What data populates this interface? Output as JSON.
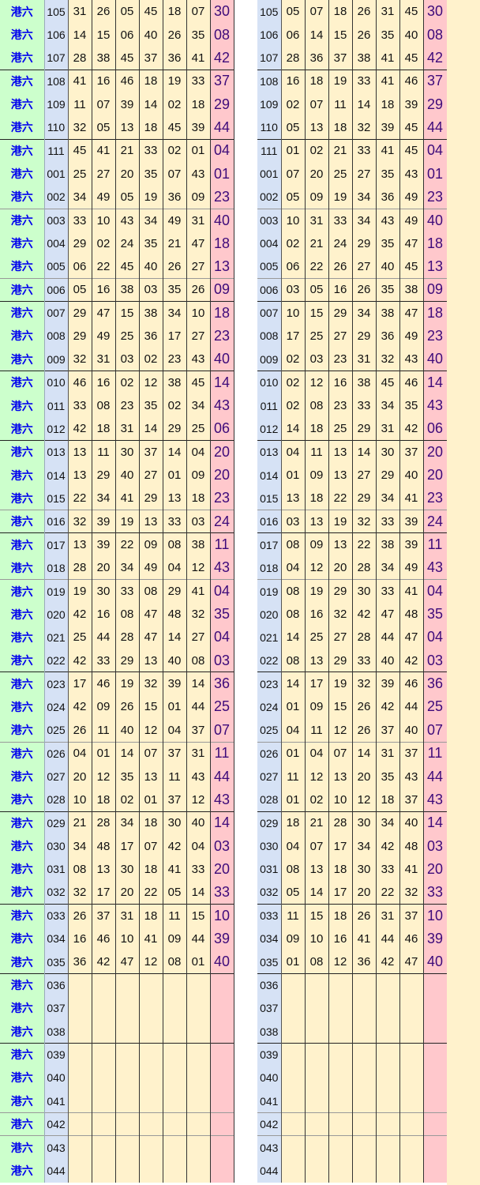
{
  "label": "港六",
  "colors": {
    "label_bg": "#ccffcc",
    "label_text": "#0000ee",
    "issue_bg": "#d6e2f5",
    "number_bg": "#fff2cc",
    "special_bg": "#ffc8cc",
    "special_text": "#3d0a7a"
  },
  "rows": [
    {
      "issue": "105",
      "nums": [
        "31",
        "26",
        "05",
        "45",
        "18",
        "07"
      ],
      "special": "30",
      "sorted": [
        "05",
        "07",
        "18",
        "26",
        "31",
        "45"
      ]
    },
    {
      "issue": "106",
      "nums": [
        "14",
        "15",
        "06",
        "40",
        "26",
        "35"
      ],
      "special": "08",
      "sorted": [
        "06",
        "14",
        "15",
        "26",
        "35",
        "40"
      ]
    },
    {
      "issue": "107",
      "nums": [
        "28",
        "38",
        "45",
        "37",
        "36",
        "41"
      ],
      "special": "42",
      "sorted": [
        "28",
        "36",
        "37",
        "38",
        "41",
        "45"
      ]
    },
    {
      "issue": "108",
      "nums": [
        "41",
        "16",
        "46",
        "18",
        "19",
        "33"
      ],
      "special": "37",
      "sorted": [
        "16",
        "18",
        "19",
        "33",
        "41",
        "46"
      ]
    },
    {
      "issue": "109",
      "nums": [
        "11",
        "07",
        "39",
        "14",
        "02",
        "18"
      ],
      "special": "29",
      "sorted": [
        "02",
        "07",
        "11",
        "14",
        "18",
        "39"
      ]
    },
    {
      "issue": "110",
      "nums": [
        "32",
        "05",
        "13",
        "18",
        "45",
        "39"
      ],
      "special": "44",
      "sorted": [
        "05",
        "13",
        "18",
        "32",
        "39",
        "45"
      ]
    },
    {
      "issue": "111",
      "nums": [
        "45",
        "41",
        "21",
        "33",
        "02",
        "01"
      ],
      "special": "04",
      "sorted": [
        "01",
        "02",
        "21",
        "33",
        "41",
        "45"
      ]
    },
    {
      "issue": "001",
      "nums": [
        "25",
        "27",
        "20",
        "35",
        "07",
        "43"
      ],
      "special": "01",
      "sorted": [
        "07",
        "20",
        "25",
        "27",
        "35",
        "43"
      ]
    },
    {
      "issue": "002",
      "nums": [
        "34",
        "49",
        "05",
        "19",
        "36",
        "09"
      ],
      "special": "23",
      "sorted": [
        "05",
        "09",
        "19",
        "34",
        "36",
        "49"
      ]
    },
    {
      "issue": "003",
      "nums": [
        "33",
        "10",
        "43",
        "34",
        "49",
        "31"
      ],
      "special": "40",
      "sorted": [
        "10",
        "31",
        "33",
        "34",
        "43",
        "49"
      ]
    },
    {
      "issue": "004",
      "nums": [
        "29",
        "02",
        "24",
        "35",
        "21",
        "47"
      ],
      "special": "18",
      "sorted": [
        "02",
        "21",
        "24",
        "29",
        "35",
        "47"
      ]
    },
    {
      "issue": "005",
      "nums": [
        "06",
        "22",
        "45",
        "40",
        "26",
        "27"
      ],
      "special": "13",
      "sorted": [
        "06",
        "22",
        "26",
        "27",
        "40",
        "45"
      ]
    },
    {
      "issue": "006",
      "nums": [
        "05",
        "16",
        "38",
        "03",
        "35",
        "26"
      ],
      "special": "09",
      "sorted": [
        "03",
        "05",
        "16",
        "26",
        "35",
        "38"
      ]
    },
    {
      "issue": "007",
      "nums": [
        "29",
        "47",
        "15",
        "38",
        "34",
        "10"
      ],
      "special": "18",
      "sorted": [
        "10",
        "15",
        "29",
        "34",
        "38",
        "47"
      ]
    },
    {
      "issue": "008",
      "nums": [
        "29",
        "49",
        "25",
        "36",
        "17",
        "27"
      ],
      "special": "23",
      "sorted": [
        "17",
        "25",
        "27",
        "29",
        "36",
        "49"
      ]
    },
    {
      "issue": "009",
      "nums": [
        "32",
        "31",
        "03",
        "02",
        "23",
        "43"
      ],
      "special": "40",
      "sorted": [
        "02",
        "03",
        "23",
        "31",
        "32",
        "43"
      ]
    },
    {
      "issue": "010",
      "nums": [
        "46",
        "16",
        "02",
        "12",
        "38",
        "45"
      ],
      "special": "14",
      "sorted": [
        "02",
        "12",
        "16",
        "38",
        "45",
        "46"
      ]
    },
    {
      "issue": "011",
      "nums": [
        "33",
        "08",
        "23",
        "35",
        "02",
        "34"
      ],
      "special": "43",
      "sorted": [
        "02",
        "08",
        "23",
        "33",
        "34",
        "35"
      ]
    },
    {
      "issue": "012",
      "nums": [
        "42",
        "18",
        "31",
        "14",
        "29",
        "25"
      ],
      "special": "06",
      "sorted": [
        "14",
        "18",
        "25",
        "29",
        "31",
        "42"
      ]
    },
    {
      "issue": "013",
      "nums": [
        "13",
        "11",
        "30",
        "37",
        "14",
        "04"
      ],
      "special": "20",
      "sorted": [
        "04",
        "11",
        "13",
        "14",
        "30",
        "37"
      ]
    },
    {
      "issue": "014",
      "nums": [
        "13",
        "29",
        "40",
        "27",
        "01",
        "09"
      ],
      "special": "20",
      "sorted": [
        "01",
        "09",
        "13",
        "27",
        "29",
        "40"
      ]
    },
    {
      "issue": "015",
      "nums": [
        "22",
        "34",
        "41",
        "29",
        "13",
        "18"
      ],
      "special": "23",
      "sorted": [
        "13",
        "18",
        "22",
        "29",
        "34",
        "41"
      ]
    },
    {
      "issue": "016",
      "nums": [
        "32",
        "39",
        "19",
        "13",
        "33",
        "03"
      ],
      "special": "24",
      "sorted": [
        "03",
        "13",
        "19",
        "32",
        "33",
        "39"
      ]
    },
    {
      "issue": "017",
      "nums": [
        "13",
        "39",
        "22",
        "09",
        "08",
        "38"
      ],
      "special": "11",
      "sorted": [
        "08",
        "09",
        "13",
        "22",
        "38",
        "39"
      ]
    },
    {
      "issue": "018",
      "nums": [
        "28",
        "20",
        "34",
        "49",
        "04",
        "12"
      ],
      "special": "43",
      "sorted": [
        "04",
        "12",
        "20",
        "28",
        "34",
        "49"
      ]
    },
    {
      "issue": "019",
      "nums": [
        "19",
        "30",
        "33",
        "08",
        "29",
        "41"
      ],
      "special": "04",
      "sorted": [
        "08",
        "19",
        "29",
        "30",
        "33",
        "41"
      ]
    },
    {
      "issue": "020",
      "nums": [
        "42",
        "16",
        "08",
        "47",
        "48",
        "32"
      ],
      "special": "35",
      "sorted": [
        "08",
        "16",
        "32",
        "42",
        "47",
        "48"
      ]
    },
    {
      "issue": "021",
      "nums": [
        "25",
        "44",
        "28",
        "47",
        "14",
        "27"
      ],
      "special": "04",
      "sorted": [
        "14",
        "25",
        "27",
        "28",
        "44",
        "47"
      ]
    },
    {
      "issue": "022",
      "nums": [
        "42",
        "33",
        "29",
        "13",
        "40",
        "08"
      ],
      "special": "03",
      "sorted": [
        "08",
        "13",
        "29",
        "33",
        "40",
        "42"
      ]
    },
    {
      "issue": "023",
      "nums": [
        "17",
        "46",
        "19",
        "32",
        "39",
        "14"
      ],
      "special": "36",
      "sorted": [
        "14",
        "17",
        "19",
        "32",
        "39",
        "46"
      ]
    },
    {
      "issue": "024",
      "nums": [
        "42",
        "09",
        "26",
        "15",
        "01",
        "44"
      ],
      "special": "25",
      "sorted": [
        "01",
        "09",
        "15",
        "26",
        "42",
        "44"
      ]
    },
    {
      "issue": "025",
      "nums": [
        "26",
        "11",
        "40",
        "12",
        "04",
        "37"
      ],
      "special": "07",
      "sorted": [
        "04",
        "11",
        "12",
        "26",
        "37",
        "40"
      ]
    },
    {
      "issue": "026",
      "nums": [
        "04",
        "01",
        "14",
        "07",
        "37",
        "31"
      ],
      "special": "11",
      "sorted": [
        "01",
        "04",
        "07",
        "14",
        "31",
        "37"
      ]
    },
    {
      "issue": "027",
      "nums": [
        "20",
        "12",
        "35",
        "13",
        "11",
        "43"
      ],
      "special": "44",
      "sorted": [
        "11",
        "12",
        "13",
        "20",
        "35",
        "43"
      ]
    },
    {
      "issue": "028",
      "nums": [
        "10",
        "18",
        "02",
        "01",
        "37",
        "12"
      ],
      "special": "43",
      "sorted": [
        "01",
        "02",
        "10",
        "12",
        "18",
        "37"
      ]
    },
    {
      "issue": "029",
      "nums": [
        "21",
        "28",
        "34",
        "18",
        "30",
        "40"
      ],
      "special": "14",
      "sorted": [
        "18",
        "21",
        "28",
        "30",
        "34",
        "40"
      ]
    },
    {
      "issue": "030",
      "nums": [
        "34",
        "48",
        "17",
        "07",
        "42",
        "04"
      ],
      "special": "03",
      "sorted": [
        "04",
        "07",
        "17",
        "34",
        "42",
        "48"
      ]
    },
    {
      "issue": "031",
      "nums": [
        "08",
        "13",
        "30",
        "18",
        "41",
        "33"
      ],
      "special": "20",
      "sorted": [
        "08",
        "13",
        "18",
        "30",
        "33",
        "41"
      ]
    },
    {
      "issue": "032",
      "nums": [
        "32",
        "17",
        "20",
        "22",
        "05",
        "14"
      ],
      "special": "33",
      "sorted": [
        "05",
        "14",
        "17",
        "20",
        "22",
        "32"
      ]
    },
    {
      "issue": "033",
      "nums": [
        "26",
        "37",
        "31",
        "18",
        "11",
        "15"
      ],
      "special": "10",
      "sorted": [
        "11",
        "15",
        "18",
        "26",
        "31",
        "37"
      ]
    },
    {
      "issue": "034",
      "nums": [
        "16",
        "46",
        "10",
        "41",
        "09",
        "44"
      ],
      "special": "39",
      "sorted": [
        "09",
        "10",
        "16",
        "41",
        "44",
        "46"
      ]
    },
    {
      "issue": "035",
      "nums": [
        "36",
        "42",
        "47",
        "12",
        "08",
        "01"
      ],
      "special": "40",
      "sorted": [
        "01",
        "08",
        "12",
        "36",
        "42",
        "47"
      ]
    },
    {
      "issue": "036",
      "nums": [
        "",
        "",
        "",
        "",
        "",
        ""
      ],
      "special": "",
      "sorted": [
        "",
        "",
        "",
        "",
        "",
        ""
      ]
    },
    {
      "issue": "037",
      "nums": [
        "",
        "",
        "",
        "",
        "",
        ""
      ],
      "special": "",
      "sorted": [
        "",
        "",
        "",
        "",
        "",
        ""
      ]
    },
    {
      "issue": "038",
      "nums": [
        "",
        "",
        "",
        "",
        "",
        ""
      ],
      "special": "",
      "sorted": [
        "",
        "",
        "",
        "",
        "",
        ""
      ]
    },
    {
      "issue": "039",
      "nums": [
        "",
        "",
        "",
        "",
        "",
        ""
      ],
      "special": "",
      "sorted": [
        "",
        "",
        "",
        "",
        "",
        ""
      ]
    },
    {
      "issue": "040",
      "nums": [
        "",
        "",
        "",
        "",
        "",
        ""
      ],
      "special": "",
      "sorted": [
        "",
        "",
        "",
        "",
        "",
        ""
      ]
    },
    {
      "issue": "041",
      "nums": [
        "",
        "",
        "",
        "",
        "",
        ""
      ],
      "special": "",
      "sorted": [
        "",
        "",
        "",
        "",
        "",
        ""
      ]
    },
    {
      "issue": "042",
      "nums": [
        "",
        "",
        "",
        "",
        "",
        ""
      ],
      "special": "",
      "sorted": [
        "",
        "",
        "",
        "",
        "",
        ""
      ]
    },
    {
      "issue": "043",
      "nums": [
        "",
        "",
        "",
        "",
        "",
        ""
      ],
      "special": "",
      "sorted": [
        "",
        "",
        "",
        "",
        "",
        ""
      ]
    },
    {
      "issue": "044",
      "nums": [
        "",
        "",
        "",
        "",
        "",
        ""
      ],
      "special": "",
      "sorted": [
        "",
        "",
        "",
        "",
        "",
        ""
      ]
    }
  ]
}
